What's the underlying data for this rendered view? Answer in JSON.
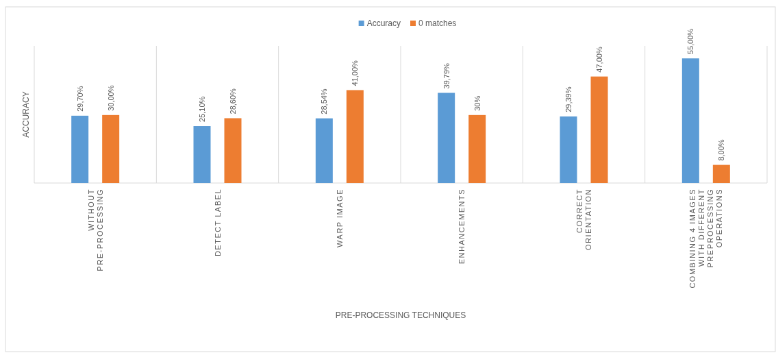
{
  "chart_data": {
    "type": "bar",
    "xlabel": "PRE-PROCESSING TECHNIQUES",
    "ylabel": "ACCURACY",
    "categories": [
      "WITHOUT PRE-PROCESSING",
      "DETECT LABEL",
      "WARP IMAGE",
      "ENHANCEMENTS",
      "CORRECT ORIENTATION",
      "COMBINING 4 IMAGES WITH DIFFERENT PREPROCESSING OPERATIONS"
    ],
    "series": [
      {
        "name": "Accuracy",
        "color": "#5b9bd5",
        "values": [
          29.7,
          25.1,
          28.54,
          39.79,
          29.39,
          55
        ],
        "value_labels": [
          "29,70%",
          "25,10%",
          "28,54%",
          "39,79%",
          "29,39%",
          "55,00%"
        ]
      },
      {
        "name": "0 matches",
        "color": "#ed7d31",
        "values": [
          30,
          28.6,
          41,
          30,
          47,
          8
        ],
        "value_labels": [
          "30,00%",
          "28,60%",
          "41,00%",
          "30%",
          "47,00%",
          "8,00%"
        ]
      }
    ],
    "relative": false,
    "grid": "x",
    "legend": "top",
    "tick_labels": "x"
  }
}
